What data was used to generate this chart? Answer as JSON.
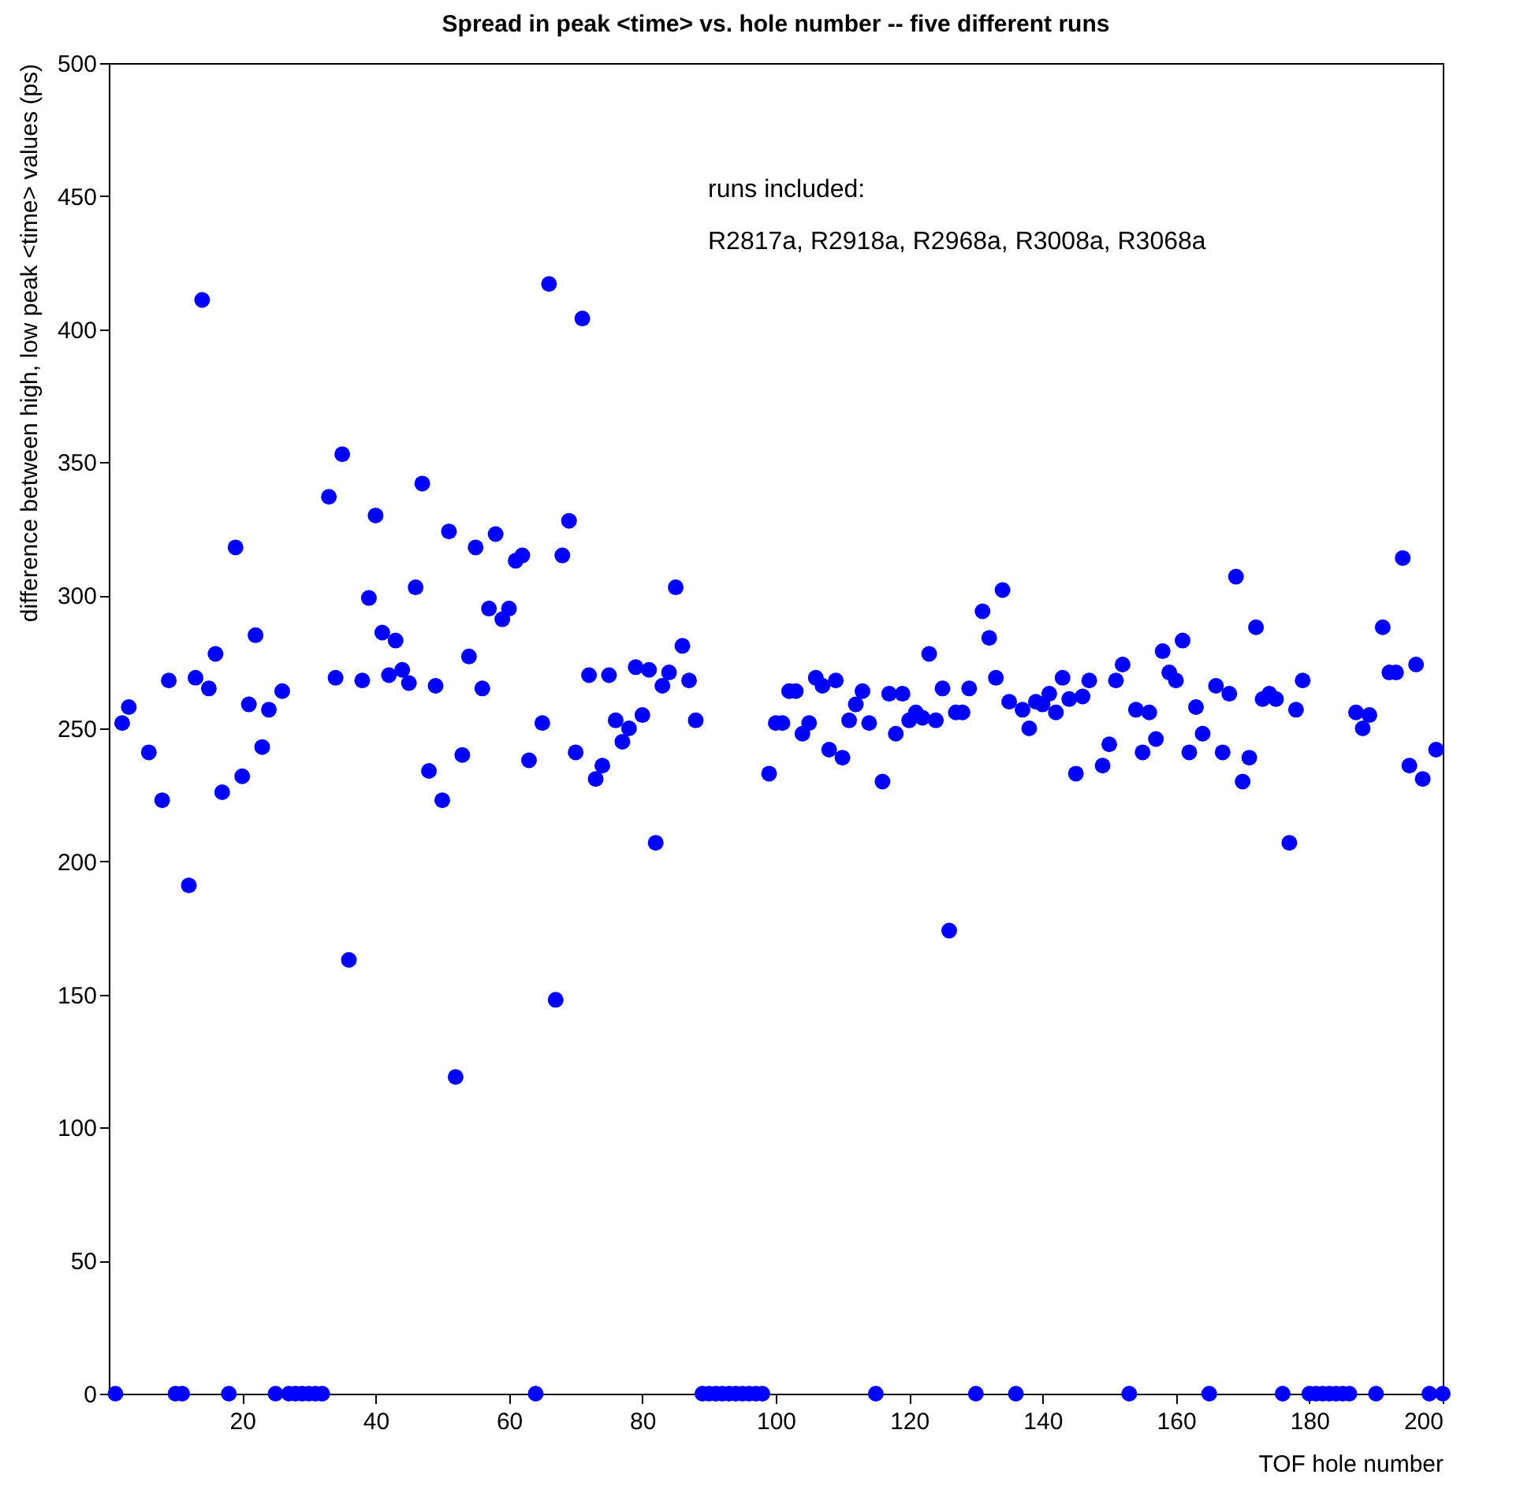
{
  "chart_data": {
    "type": "scatter",
    "title": "Spread in peak <time> vs. hole number -- five different runs",
    "xlabel": "TOF hole number",
    "ylabel": "difference between high, low peak <time> values (ps)",
    "annotations": [
      "runs included:",
      "R2817a, R2918a, R2968a, R3008a, R3068a"
    ],
    "xlim": [
      0,
      200
    ],
    "xticks": [
      20,
      40,
      60,
      80,
      100,
      120,
      140,
      160,
      180,
      200
    ],
    "ylim": [
      0,
      500
    ],
    "yticks": [
      0,
      50,
      100,
      150,
      200,
      250,
      300,
      350,
      400,
      450,
      500
    ],
    "grid": false,
    "marker": "circle",
    "series": [
      {
        "color": "#0000ff",
        "x": [
          1,
          2,
          3,
          6,
          8,
          9,
          10,
          11,
          12,
          13,
          14,
          15,
          16,
          17,
          18,
          19,
          20,
          21,
          22,
          23,
          24,
          25,
          26,
          27,
          28,
          29,
          30,
          31,
          32,
          33,
          34,
          35,
          36,
          38,
          39,
          40,
          41,
          42,
          43,
          44,
          45,
          46,
          47,
          48,
          49,
          50,
          51,
          52,
          53,
          54,
          55,
          56,
          57,
          58,
          59,
          60,
          61,
          62,
          63,
          64,
          65,
          66,
          67,
          68,
          69,
          70,
          71,
          72,
          73,
          74,
          75,
          76,
          77,
          78,
          79,
          80,
          81,
          82,
          83,
          84,
          85,
          86,
          87,
          88,
          89,
          90,
          91,
          92,
          93,
          94,
          95,
          96,
          97,
          98,
          99,
          100,
          101,
          102,
          103,
          104,
          105,
          106,
          107,
          108,
          109,
          110,
          111,
          112,
          113,
          114,
          115,
          116,
          117,
          118,
          119,
          120,
          121,
          122,
          123,
          124,
          125,
          126,
          127,
          128,
          129,
          130,
          131,
          132,
          133,
          134,
          135,
          136,
          137,
          138,
          139,
          140,
          141,
          142,
          143,
          144,
          145,
          146,
          147,
          149,
          150,
          151,
          152,
          153,
          154,
          155,
          156,
          157,
          158,
          159,
          160,
          161,
          162,
          163,
          164,
          165,
          166,
          167,
          168,
          169,
          170,
          171,
          172,
          173,
          174,
          175,
          176,
          177,
          178,
          179,
          180,
          181,
          182,
          183,
          184,
          185,
          186,
          187,
          188,
          189,
          190,
          191,
          192,
          193,
          194,
          195,
          196,
          197,
          198,
          199,
          200
        ],
        "values": [
          0,
          252,
          258,
          241,
          223,
          268,
          0,
          0,
          191,
          269,
          411,
          265,
          278,
          226,
          0,
          318,
          232,
          259,
          285,
          243,
          257,
          0,
          264,
          0,
          0,
          0,
          0,
          0,
          0,
          337,
          269,
          353,
          163,
          268,
          299,
          330,
          286,
          270,
          283,
          272,
          267,
          303,
          342,
          234,
          266,
          223,
          324,
          119,
          240,
          277,
          318,
          265,
          295,
          323,
          291,
          295,
          313,
          315,
          238,
          0,
          252,
          417,
          148,
          315,
          328,
          241,
          404,
          270,
          231,
          236,
          270,
          253,
          245,
          250,
          273,
          255,
          272,
          207,
          266,
          271,
          303,
          281,
          268,
          253,
          0,
          0,
          0,
          0,
          0,
          0,
          0,
          0,
          0,
          0,
          233,
          252,
          252,
          264,
          264,
          248,
          252,
          269,
          266,
          242,
          268,
          239,
          253,
          259,
          264,
          252,
          0,
          230,
          263,
          248,
          263,
          253,
          256,
          254,
          278,
          253,
          265,
          174,
          256,
          256,
          265,
          0,
          294,
          284,
          269,
          302,
          260,
          0,
          257,
          250,
          260,
          259,
          263,
          256,
          269,
          261,
          233,
          262,
          268,
          236,
          244,
          268,
          274,
          0,
          257,
          241,
          256,
          246,
          279,
          271,
          268,
          283,
          241,
          258,
          248,
          0,
          266,
          241,
          263,
          307,
          230,
          239,
          288,
          261,
          263,
          261,
          0,
          207,
          257,
          268,
          0,
          0,
          0,
          0,
          0,
          0,
          0,
          256,
          250,
          255,
          0,
          288,
          271,
          271,
          314,
          236,
          274,
          231,
          0,
          242,
          0
        ]
      }
    ]
  }
}
